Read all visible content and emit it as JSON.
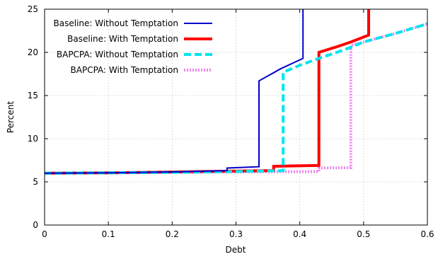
{
  "chart_data": {
    "type": "line",
    "xlabel": "Debt",
    "ylabel": "Percent",
    "xlim": [
      0,
      0.6
    ],
    "ylim": [
      0,
      25
    ],
    "xticks": [
      0,
      0.1,
      0.2,
      0.3,
      0.4,
      0.5,
      0.6
    ],
    "xtick_labels": [
      "0",
      "0.1",
      "0.2",
      "0.3",
      "0.4",
      "0.5",
      "0.6"
    ],
    "yticks": [
      0,
      5,
      10,
      15,
      20,
      25
    ],
    "ytick_labels": [
      "0",
      "5",
      "10",
      "15",
      "20",
      "25"
    ],
    "grid": true,
    "legend_position": "top-left",
    "series": [
      {
        "name": "Baseline: Without Temptation",
        "color": "#0000cc",
        "style": "solid-thin",
        "x": [
          0,
          0.1,
          0.2,
          0.286,
          0.286,
          0.336,
          0.336,
          0.37,
          0.405,
          0.405
        ],
        "y": [
          6.0,
          6.05,
          6.15,
          6.3,
          6.6,
          6.75,
          16.7,
          18.1,
          19.3,
          25.0
        ]
      },
      {
        "name": "Baseline: With Temptation",
        "color": "#ff0000",
        "style": "solid-thick",
        "x": [
          0,
          0.1,
          0.2,
          0.3,
          0.359,
          0.359,
          0.43,
          0.43,
          0.46,
          0.48,
          0.508,
          0.508
        ],
        "y": [
          6.0,
          6.05,
          6.15,
          6.25,
          6.3,
          6.8,
          6.9,
          20.0,
          20.7,
          21.2,
          22.0,
          25.0
        ]
      },
      {
        "name": "BAPCPA: Without Temptation",
        "color": "#00e5ee",
        "style": "dashed-thick",
        "x": [
          0,
          0.1,
          0.2,
          0.3,
          0.374,
          0.374,
          0.4,
          0.43,
          0.47,
          0.5,
          0.55,
          0.6
        ],
        "y": [
          6.0,
          6.05,
          6.1,
          6.2,
          6.3,
          17.7,
          18.5,
          19.3,
          20.3,
          21.2,
          22.2,
          23.3
        ]
      },
      {
        "name": "BAPCPA: With Temptation",
        "color": "#ee82ee",
        "style": "dotted-thick",
        "x": [
          0,
          0.1,
          0.2,
          0.3,
          0.43,
          0.43,
          0.48,
          0.48,
          0.5,
          0.55,
          0.6
        ],
        "y": [
          6.0,
          6.05,
          6.1,
          6.15,
          6.2,
          6.6,
          6.65,
          20.8,
          21.2,
          22.2,
          23.3
        ]
      }
    ]
  }
}
